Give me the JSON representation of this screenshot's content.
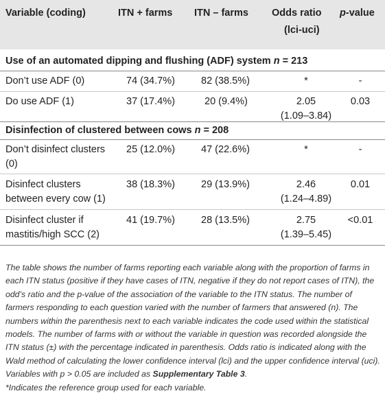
{
  "header": {
    "col1": "Variable (coding)",
    "col2": "ITN + farms",
    "col3": "ITN – farms",
    "col4_line1": "Odds ratio",
    "col4_line2": "(lci-uci)",
    "col5_pre": "p",
    "col5_post": "-value"
  },
  "sections": [
    {
      "title_pre": "Use of an automated dipping and flushing (ADF) system ",
      "n_var": "n",
      "n_val": " = 213",
      "rows": [
        {
          "variable": [
            "Don’t use ADF (0)"
          ],
          "pos": "74 (34.7%)",
          "neg": "82 (38.5%)",
          "or": [
            "*"
          ],
          "p": "-"
        },
        {
          "variable": [
            "Do use ADF (1)"
          ],
          "pos": "37 (17.4%)",
          "neg": "20 (9.4%)",
          "or": [
            "2.05",
            "(1.09–3.84)"
          ],
          "p": "0.03"
        }
      ]
    },
    {
      "title_pre": "Disinfection of clustered between cows ",
      "n_var": "n",
      "n_val": " = 208",
      "rows": [
        {
          "variable": [
            "Don’t disinfect clusters",
            "(0)"
          ],
          "pos": "25 (12.0%)",
          "neg": "47 (22.6%)",
          "or": [
            "*"
          ],
          "p": "-"
        },
        {
          "variable": [
            "Disinfect clusters",
            "between every cow (1)"
          ],
          "pos": "38 (18.3%)",
          "neg": "29 (13.9%)",
          "or": [
            "2.46",
            "(1.24–4.89)"
          ],
          "p": "0.01"
        },
        {
          "variable": [
            "Disinfect cluster if",
            "mastitis/high SCC (2)"
          ],
          "pos": "41 (19.7%)",
          "neg": "28 (13.5%)",
          "or": [
            "2.75",
            "(1.39–5.45)"
          ],
          "p": "<0.01"
        }
      ]
    }
  ],
  "note": {
    "part1": "The table shows the number of farms reporting each variable along with the proportion of farms in each ITN status (positive if they have cases of ITN, negative if they do not report cases of ITN), the odd’s ratio and the p-value of the association of the variable to the ITN status. The number of farmers responding to each question varied with the number of farmers that answered (n). The numbers within the parenthesis next to each variable indicates the code used within the statistical models. The number of farms with or without the variable in question was recorded alongside the ITN status (±) with the percentage indicated in parenthesis. Odds ratio is indicated along with the Wald method of calculating the lower confidence interval (lci) and the upper confidence interval (uci). Variables with p > 0.05 are included as ",
    "link": "Supplementary Table 3",
    "part2": "."
  },
  "footnote": "*Indicates the reference group used for each variable."
}
